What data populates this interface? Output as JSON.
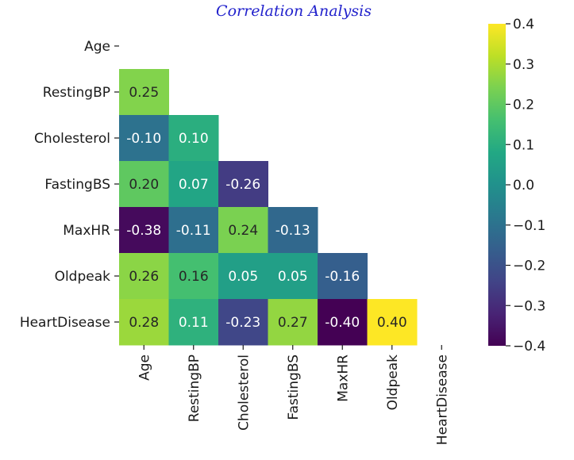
{
  "chart_data": {
    "type": "heatmap",
    "title": "Correlation Analysis",
    "variables": [
      "Age",
      "RestingBP",
      "Cholesterol",
      "FastingBS",
      "MaxHR",
      "Oldpeak",
      "HeartDisease"
    ],
    "mask": "upper-triangle-and-diagonal",
    "cells": [
      {
        "row": "RestingBP",
        "col": "Age",
        "value": 0.25,
        "label": "0.25"
      },
      {
        "row": "Cholesterol",
        "col": "Age",
        "value": -0.1,
        "label": "-0.10"
      },
      {
        "row": "Cholesterol",
        "col": "RestingBP",
        "value": 0.1,
        "label": "0.10"
      },
      {
        "row": "FastingBS",
        "col": "Age",
        "value": 0.2,
        "label": "0.20"
      },
      {
        "row": "FastingBS",
        "col": "RestingBP",
        "value": 0.07,
        "label": "0.07"
      },
      {
        "row": "FastingBS",
        "col": "Cholesterol",
        "value": -0.26,
        "label": "-0.26"
      },
      {
        "row": "MaxHR",
        "col": "Age",
        "value": -0.38,
        "label": "-0.38"
      },
      {
        "row": "MaxHR",
        "col": "RestingBP",
        "value": -0.11,
        "label": "-0.11"
      },
      {
        "row": "MaxHR",
        "col": "Cholesterol",
        "value": 0.24,
        "label": "0.24"
      },
      {
        "row": "MaxHR",
        "col": "FastingBS",
        "value": -0.13,
        "label": "-0.13"
      },
      {
        "row": "Oldpeak",
        "col": "Age",
        "value": 0.26,
        "label": "0.26"
      },
      {
        "row": "Oldpeak",
        "col": "RestingBP",
        "value": 0.16,
        "label": "0.16"
      },
      {
        "row": "Oldpeak",
        "col": "Cholesterol",
        "value": 0.05,
        "label": "0.05"
      },
      {
        "row": "Oldpeak",
        "col": "FastingBS",
        "value": 0.05,
        "label": "0.05"
      },
      {
        "row": "Oldpeak",
        "col": "MaxHR",
        "value": -0.16,
        "label": "-0.16"
      },
      {
        "row": "HeartDisease",
        "col": "Age",
        "value": 0.28,
        "label": "0.28"
      },
      {
        "row": "HeartDisease",
        "col": "RestingBP",
        "value": 0.11,
        "label": "0.11"
      },
      {
        "row": "HeartDisease",
        "col": "Cholesterol",
        "value": -0.23,
        "label": "-0.23"
      },
      {
        "row": "HeartDisease",
        "col": "FastingBS",
        "value": 0.27,
        "label": "0.27"
      },
      {
        "row": "HeartDisease",
        "col": "MaxHR",
        "value": -0.4,
        "label": "-0.40"
      },
      {
        "row": "HeartDisease",
        "col": "Oldpeak",
        "value": 0.4,
        "label": "0.40"
      }
    ],
    "colorbar": {
      "colormap": "viridis",
      "range": [
        -0.4,
        0.4
      ],
      "ticks": [
        0.4,
        0.3,
        0.2,
        0.1,
        0.0,
        -0.1,
        -0.2,
        -0.3,
        -0.4
      ],
      "tick_labels": [
        "0.4",
        "0.3",
        "0.2",
        "0.1",
        "0.0",
        "−0.1",
        "−0.2",
        "−0.3",
        "−0.4"
      ]
    },
    "colors": {
      "title": "#2222cc",
      "text": "#1a1a1a"
    }
  }
}
